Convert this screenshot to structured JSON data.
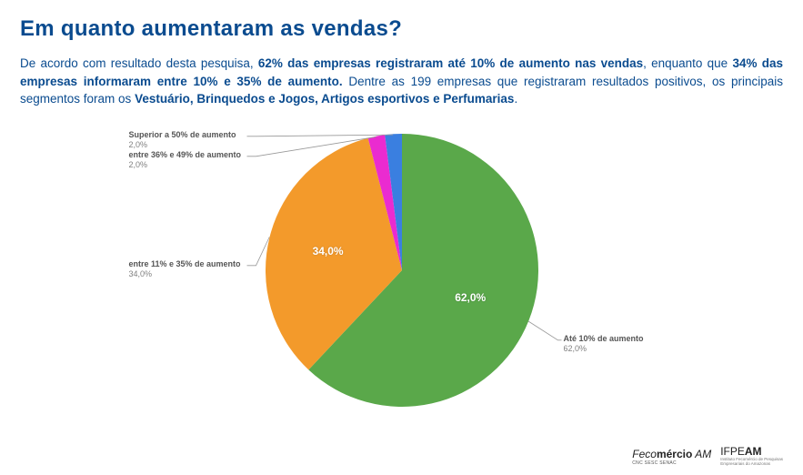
{
  "title": "Em quanto aumentaram as vendas?",
  "paragraph": {
    "p1": "De acordo com resultado desta pesquisa, ",
    "b1": "62% das empresas registraram até 10% de aumento nas vendas",
    "p2": ", enquanto que ",
    "b2": "34% das empresas informaram entre 10% e 35% de aumento.",
    "p3": " Dentre as 199 empresas que registraram resultados positivos,  os principais segmentos foram os ",
    "b3": "Vestuário, Brinquedos e Jogos, Artigos esportivos  e Perfumarias",
    "p4": "."
  },
  "chart": {
    "type": "pie",
    "radius": 150,
    "background_color": "#ffffff",
    "label_fontsize": 9,
    "label_color": "#666666",
    "inside_label_fontsize": 12,
    "inside_label_color": "#ffffff",
    "start_angle_deg": -90,
    "slices": [
      {
        "label": "Até 10% de aumento",
        "value": 62.0,
        "pct_text": "62,0%",
        "color": "#5aa84a"
      },
      {
        "label": "entre 11% e 35% de aumento",
        "value": 34.0,
        "pct_text": "34,0%",
        "color": "#f39a2b"
      },
      {
        "label": "entre 36% e 49% de aumento",
        "value": 2.0,
        "pct_text": "2,0%",
        "color": "#ea2bd0"
      },
      {
        "label": "Superior a 50% de aumento",
        "value": 2.0,
        "pct_text": "2,0%",
        "color": "#3a7fe0"
      }
    ],
    "inside_labels": [
      {
        "text": "62,0%",
        "slice": 0
      },
      {
        "text": "34,0%",
        "slice": 1
      }
    ]
  },
  "footer": {
    "brand1_main_a": "Feco",
    "brand1_main_b": "mércio",
    "brand1_suffix": " AM",
    "brand1_sub": "CNC SESC SENAC",
    "brand2_main_a": "IFPE",
    "brand2_main_b": "AM",
    "brand2_sub1": "Instituto Fecomércio de Pesquisas",
    "brand2_sub2": "Empresariais do Amazonas"
  }
}
